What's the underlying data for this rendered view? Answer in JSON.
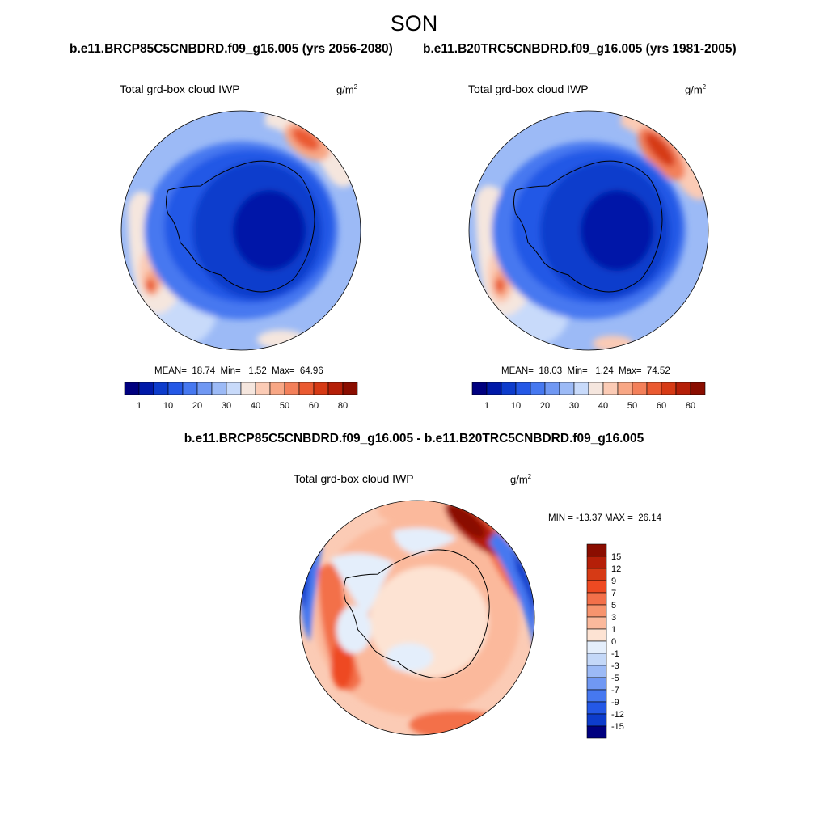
{
  "figure": {
    "season": "SON",
    "panels": [
      {
        "run_title": "b.e11.BRCP85C5CNBDRD.f09_g16.005 (yrs 2056-2080)",
        "variable": "Total grd-box cloud IWP",
        "units_base": "g/m",
        "units_exp": "2",
        "stats": "MEAN=  18.74  Min=   1.52  Max=  64.96"
      },
      {
        "run_title": "b.e11.B20TRC5CNBDRD.f09_g16.005 (yrs 1981-2005)",
        "variable": "Total grd-box cloud IWP",
        "units_base": "g/m",
        "units_exp": "2",
        "stats": "MEAN=  18.03  Min=   1.24  Max=  74.52"
      }
    ],
    "difference": {
      "title": "b.e11.BRCP85C5CNBDRD.f09_g16.005 - b.e11.B20TRC5CNBDRD.f09_g16.005",
      "variable": "Total grd-box cloud IWP",
      "units_base": "g/m",
      "units_exp": "2",
      "stats": "MIN = -13.37 MAX =  26.14"
    }
  },
  "colorbars": {
    "absolute": {
      "labels": [
        "1",
        "10",
        "20",
        "30",
        "40",
        "50",
        "60",
        "80"
      ],
      "colors": [
        "#00007f",
        "#0019a8",
        "#0d3ccc",
        "#2458e6",
        "#4678f0",
        "#7098f3",
        "#9cbaf6",
        "#c8dafa",
        "#f5e6de",
        "#fbcbb5",
        "#f8a785",
        "#f3805a",
        "#ea5a31",
        "#d63a15",
        "#b51f08",
        "#8a0d00"
      ]
    },
    "difference": {
      "labels": [
        "15",
        "12",
        "9",
        "7",
        "5",
        "3",
        "1",
        "0",
        "-1",
        "-3",
        "-5",
        "-7",
        "-9",
        "-12",
        "-15"
      ],
      "colors": [
        "#8a0d00",
        "#b51f08",
        "#d63a15",
        "#ee4a22",
        "#f3704a",
        "#f7946e",
        "#fbb99c",
        "#fde3d3",
        "#e4eefb",
        "#c4d8f8",
        "#9cbaf6",
        "#7098f3",
        "#4678f0",
        "#2458e6",
        "#0d3ccc",
        "#00007f"
      ]
    }
  }
}
